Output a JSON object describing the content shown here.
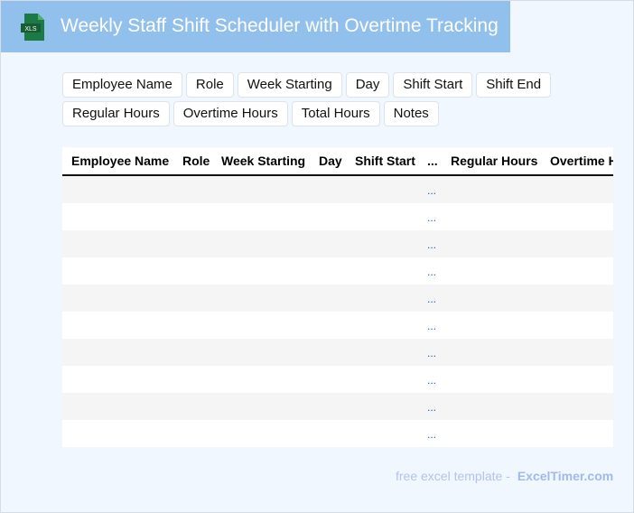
{
  "header": {
    "title": "Weekly Staff Shift Scheduler with Overtime Tracking",
    "icon": "xls-file-icon",
    "icon_label": "XLS",
    "bg_color": "#92c0ec"
  },
  "chips": [
    "Employee Name",
    "Role",
    "Week Starting",
    "Day",
    "Shift Start",
    "Shift End",
    "Regular Hours",
    "Overtime Hours",
    "Total Hours",
    "Notes"
  ],
  "table": {
    "columns": [
      "Employee Name",
      "Role",
      "Week Starting",
      "Day",
      "Shift Start",
      "...",
      "Regular Hours",
      "Overtime Hours"
    ],
    "rows": [
      [
        "",
        "",
        "",
        "",
        "",
        "...",
        "",
        ""
      ],
      [
        "",
        "",
        "",
        "",
        "",
        "...",
        "",
        ""
      ],
      [
        "",
        "",
        "",
        "",
        "",
        "...",
        "",
        ""
      ],
      [
        "",
        "",
        "",
        "",
        "",
        "...",
        "",
        ""
      ],
      [
        "",
        "",
        "",
        "",
        "",
        "...",
        "",
        ""
      ],
      [
        "",
        "",
        "",
        "",
        "",
        "...",
        "",
        ""
      ],
      [
        "",
        "",
        "",
        "",
        "",
        "...",
        "",
        ""
      ],
      [
        "",
        "",
        "",
        "",
        "",
        "...",
        "",
        ""
      ],
      [
        "",
        "",
        "",
        "",
        "",
        "...",
        "",
        ""
      ],
      [
        "",
        "",
        "",
        "",
        "",
        "...",
        "",
        ""
      ]
    ]
  },
  "footer": {
    "text": "free excel template -",
    "brand": "ExcelTimer.com"
  }
}
